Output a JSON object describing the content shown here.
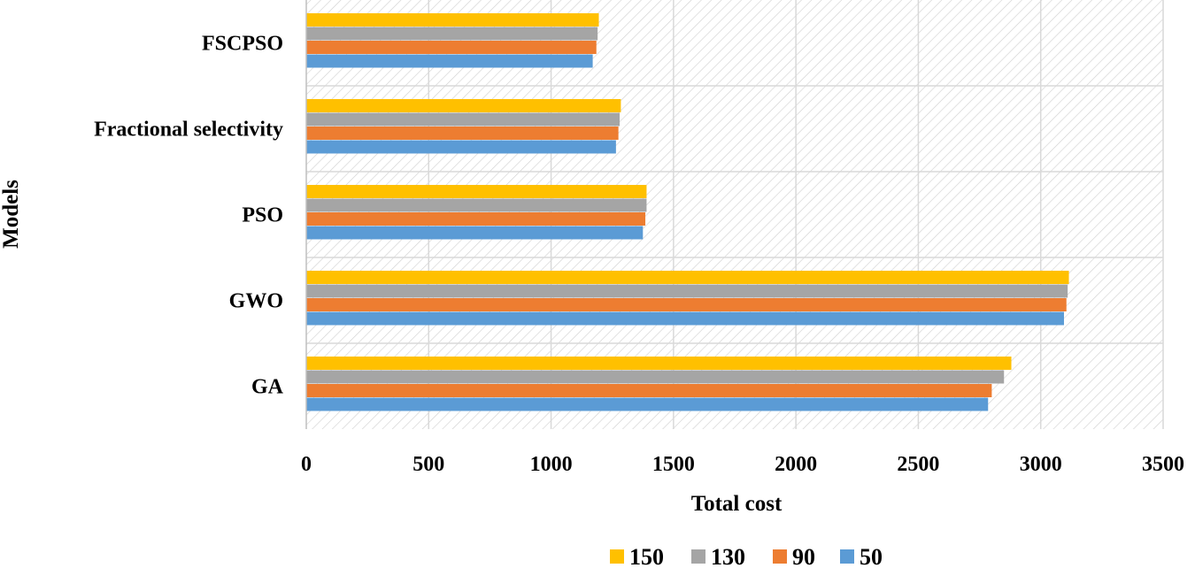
{
  "chart_data": {
    "type": "bar",
    "orientation": "horizontal",
    "categories": [
      "FSCPSO",
      "Fractional selectivity",
      "PSO",
      "GWO",
      "GA"
    ],
    "series": [
      {
        "name": "150",
        "color": "#FFC000",
        "values": [
          1195,
          1285,
          1390,
          3115,
          2880
        ]
      },
      {
        "name": "130",
        "color": "#A5A5A5",
        "values": [
          1190,
          1280,
          1390,
          3110,
          2850
        ]
      },
      {
        "name": "90",
        "color": "#ED7D31",
        "values": [
          1185,
          1275,
          1385,
          3105,
          2800
        ]
      },
      {
        "name": "50",
        "color": "#5B9BD5",
        "values": [
          1170,
          1265,
          1375,
          3095,
          2785
        ]
      }
    ],
    "legend_order": [
      "150",
      "130",
      "90",
      "50"
    ],
    "xticks": [
      "0",
      "500",
      "1000",
      "1500",
      "2000",
      "2500",
      "3000",
      "3500"
    ],
    "xlim": [
      0,
      3500
    ],
    "xlabel": "Total cost",
    "ylabel": "Models",
    "title": "",
    "grid": true,
    "legend_position": "bottom"
  }
}
